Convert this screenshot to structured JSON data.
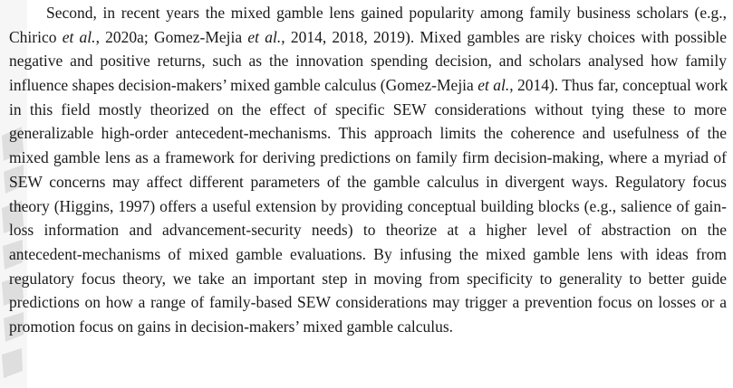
{
  "paragraph": {
    "lines": [
      [
        "Second, in recent years the mixed gamble lens gained popularity among family business scholars (e.g., ",
        ""
      ],
      [
        "Chirico ",
        "et al.",
        ", 2020a; Gomez-Mejia ",
        "et al.",
        ", 2014, 2018, 2019). Mixed gambles are risky choices with possible"
      ],
      [
        "negative and positive returns, such as the innovation spending decision, and scholars analysed how family"
      ],
      [
        "influence shapes decision-makers’ mixed gamble calculus (Gomez-Mejia ",
        "et al.",
        ", 2014). Thus far, conceptual work"
      ],
      [
        "in this field mostly theorized on the effect of specific SEW considerations without tying these to more"
      ],
      [
        "generalizable high-order antecedent-mechanisms. This approach limits the coherence and usefulness of the"
      ],
      [
        "mixed gamble lens as a framework for deriving predictions on family firm decision-making, where a myriad of"
      ],
      [
        "SEW concerns may affect different parameters of the gamble calculus in divergent ways. Regulatory focus"
      ],
      [
        "theory (Higgins, 1997) offers a useful extension by providing conceptual building blocks (e.g., salience of gain-"
      ],
      [
        "loss information and advancement-security needs) to theorize at a higher level of abstraction on the"
      ],
      [
        "antecedent-mechanisms of mixed gamble evaluations. By infusing the mixed gamble lens with ideas from"
      ],
      [
        "regulatory focus theory, we take an important step in moving from specificity to generality to better guide"
      ],
      [
        "predictions on how a range of family-based SEW considerations may trigger a prevention focus on losses or a"
      ],
      [
        "promotion focus on gains in decision-makers’ mixed gamble calculus."
      ]
    ]
  },
  "watermark": {
    "color": "#d9d9d9"
  }
}
